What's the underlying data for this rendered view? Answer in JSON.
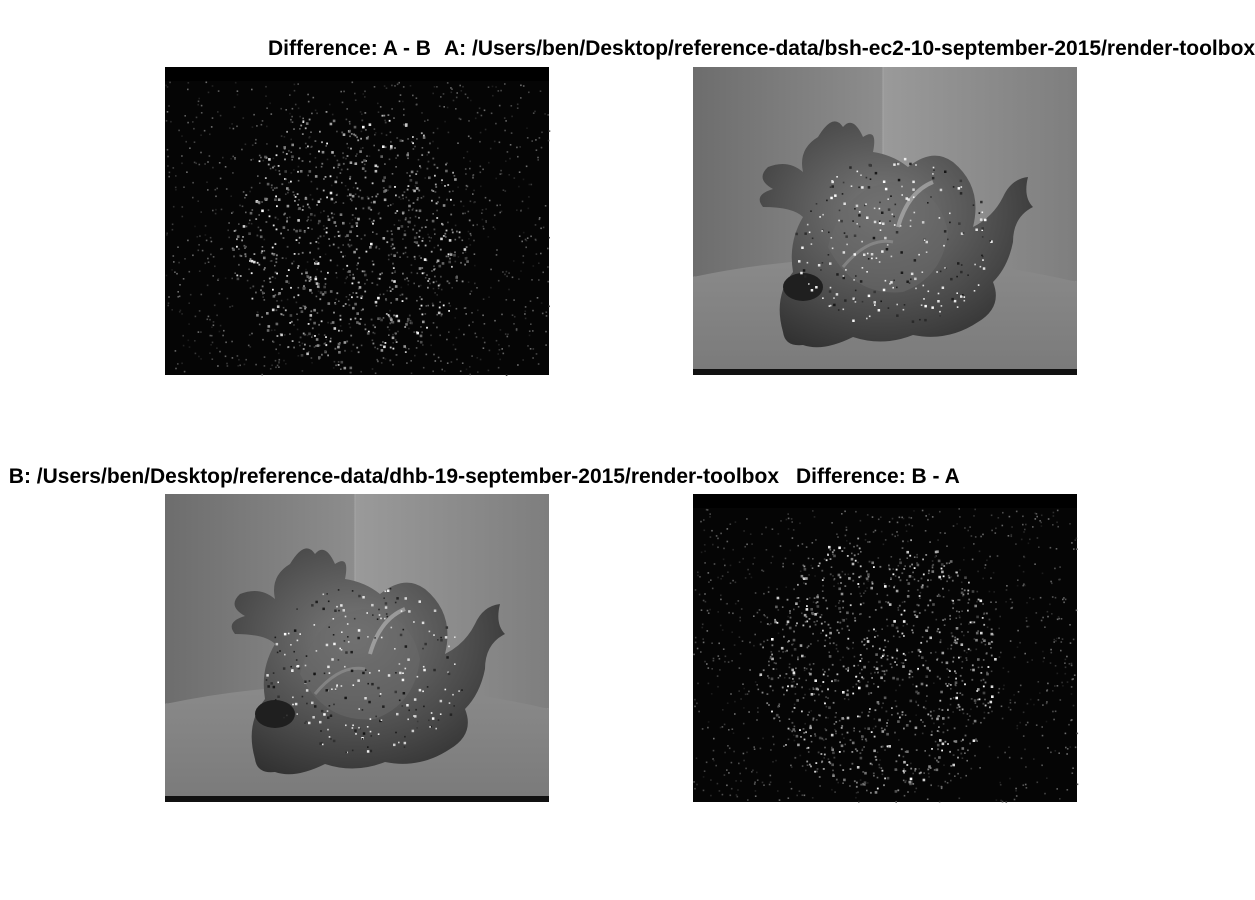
{
  "figure": {
    "panels": [
      {
        "id": "diff-ab",
        "title": "Difference: A - B"
      },
      {
        "id": "render-a",
        "title": "A: /Users/ben/Desktop/reference-data/bsh-ec2-10-september-2015/render-toolbox"
      },
      {
        "id": "render-b",
        "title": "B: /Users/ben/Desktop/reference-data/dhb-19-september-2015/render-toolbox"
      },
      {
        "id": "diff-ba",
        "title": "Difference: B - A"
      }
    ]
  }
}
